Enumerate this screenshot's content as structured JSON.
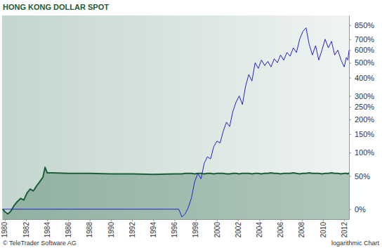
{
  "chart_data": {
    "type": "line",
    "title": "HONG KONG DOLLAR SPOT",
    "annotations": [
      "© TeleTrader Software AG",
      "logarithmic Chart"
    ],
    "log": "y",
    "grid": false,
    "x": [
      1979.8,
      1980,
      1980.3,
      1980.6,
      1980.9,
      1981.2,
      1981.5,
      1981.8,
      1982.1,
      1982.4,
      1982.7,
      1983,
      1983.3,
      1983.6,
      1983.8,
      1984,
      1984.5,
      1986,
      1988,
      1990,
      1992,
      1994,
      1996,
      1996.4,
      1996.7,
      1997,
      1997.3,
      1997.6,
      1997.9,
      1998.2,
      1998.5,
      1998.8,
      1999.1,
      1999.4,
      1999.7,
      2000,
      2000.3,
      2000.6,
      2000.9,
      2001.2,
      2001.5,
      2001.8,
      2002.1,
      2002.4,
      2002.7,
      2003,
      2003.3,
      2003.6,
      2003.9,
      2004.2,
      2004.5,
      2004.8,
      2005.1,
      2005.4,
      2005.7,
      2006,
      2006.3,
      2006.6,
      2006.9,
      2007.2,
      2007.5,
      2007.8,
      2008.1,
      2008.4,
      2008.7,
      2009,
      2009.3,
      2009.6,
      2009.9,
      2010.2,
      2010.5,
      2010.8,
      2011.1,
      2011.4,
      2011.7,
      2012,
      2012.2,
      2012.35,
      2012.45
    ],
    "series": [
      {
        "type": "area",
        "color": "#1d5e3a",
        "values": [
          0,
          -3,
          -6,
          -2,
          5,
          10,
          14,
          12,
          22,
          28,
          25,
          33,
          40,
          48,
          67,
          56,
          56,
          55,
          55,
          54,
          54,
          53,
          54,
          54,
          54,
          55,
          55,
          55,
          54,
          55,
          55,
          54,
          55,
          55,
          54,
          55,
          55,
          55,
          54,
          54,
          55,
          55,
          54,
          55,
          55,
          55,
          54,
          55,
          55,
          54,
          55,
          55,
          56,
          55,
          55,
          54,
          55,
          55,
          55,
          56,
          55,
          54,
          55,
          55,
          56,
          55,
          55,
          55,
          54,
          55,
          55,
          56,
          55,
          55,
          54,
          55,
          55,
          54,
          56
        ]
      },
      {
        "type": "line",
        "color": "#2222cc",
        "values": [
          0,
          0,
          0,
          0,
          0,
          0,
          0,
          0,
          0,
          0,
          0,
          0,
          0,
          0,
          0,
          0,
          0,
          0,
          0,
          0,
          0,
          0,
          0,
          0,
          -10,
          -6,
          2,
          15,
          40,
          55,
          45,
          75,
          90,
          85,
          115,
          130,
          125,
          160,
          190,
          175,
          230,
          270,
          300,
          260,
          350,
          420,
          380,
          500,
          460,
          520,
          480,
          510,
          470,
          530,
          500,
          560,
          520,
          580,
          550,
          620,
          580,
          700,
          780,
          820,
          650,
          560,
          640,
          520,
          600,
          700,
          620,
          680,
          560,
          600,
          520,
          470,
          540,
          520,
          600
        ]
      }
    ],
    "xlim": [
      1979.75,
      2012.45
    ],
    "xticks": [
      1980,
      1982,
      1984,
      1986,
      1988,
      1990,
      1992,
      1994,
      1996,
      1998,
      2000,
      2002,
      2004,
      2006,
      2008,
      2010,
      2012
    ],
    "ylim": [
      -13,
      970
    ],
    "yticks": [
      {
        "value": 0,
        "label": "0%"
      },
      {
        "value": 50,
        "label": "50%"
      },
      {
        "value": 100,
        "label": "100%"
      },
      {
        "value": 150,
        "label": "150%"
      },
      {
        "value": 200,
        "label": "200%"
      },
      {
        "value": 250,
        "label": "250%"
      },
      {
        "value": 300,
        "label": "300%"
      },
      {
        "value": 400,
        "label": "400%"
      },
      {
        "value": 500,
        "label": "500%"
      },
      {
        "value": 600,
        "label": "600%"
      },
      {
        "value": 700,
        "label": "700%"
      },
      {
        "value": 850,
        "label": "850%"
      }
    ]
  }
}
